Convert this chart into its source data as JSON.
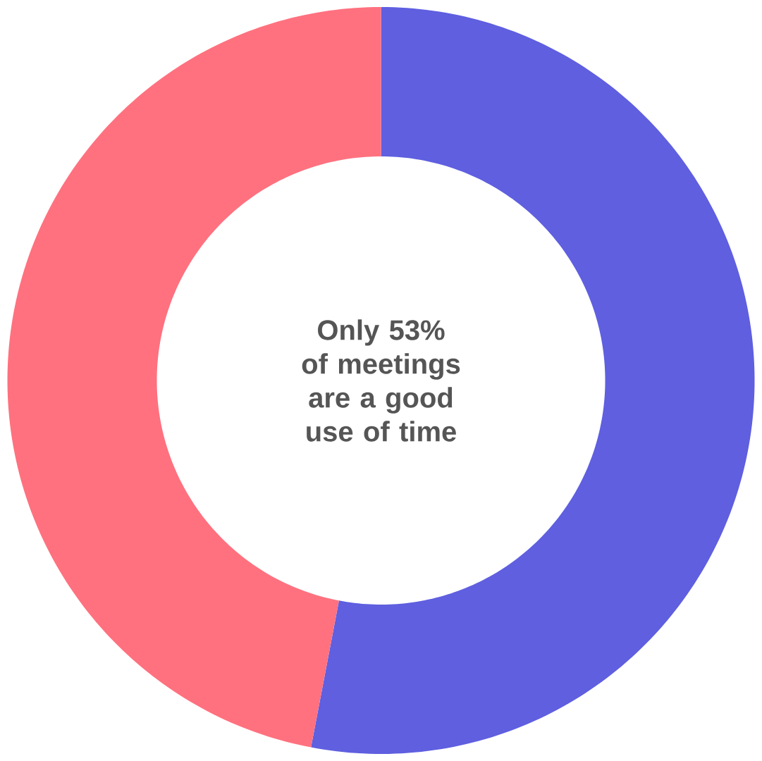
{
  "chart_data": {
    "type": "donut",
    "categories": [
      null,
      null
    ],
    "values": [
      53,
      47
    ],
    "colors": [
      "#5f5fe0",
      "#ff717f"
    ],
    "annotations": [
      "Only 53% of meetings are a good use of time"
    ]
  }
}
